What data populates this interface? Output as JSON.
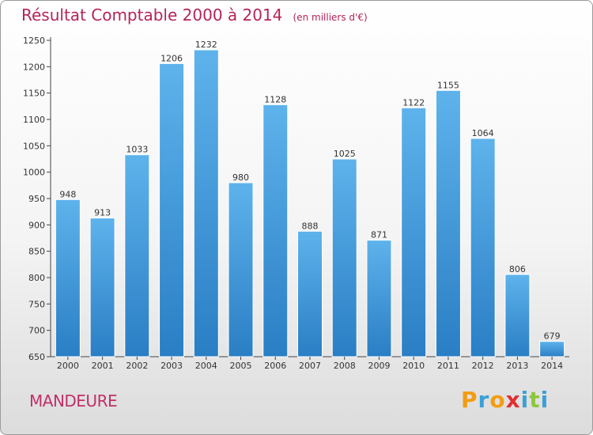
{
  "title": {
    "main": "Résultat Comptable 2000 à 2014",
    "unit": "(en milliers d'€)"
  },
  "commune": "MANDEURE",
  "brand": {
    "letters": [
      "P",
      "r",
      "o",
      "x",
      "i",
      "t",
      "i"
    ],
    "colors": [
      "#f39c12",
      "#3aa0d8",
      "#f39c12",
      "#e03030",
      "#3aa0d8",
      "#8cc63f",
      "#3aa0d8"
    ]
  },
  "colors": {
    "title": "#b4245a",
    "bar_top": "#5eb3ec",
    "bar_bottom": "#2a7ec4",
    "bar_border": "#ffffff"
  },
  "chart_data": {
    "type": "bar",
    "title": "Résultat Comptable 2000 à 2014",
    "subtitle": "(en milliers d'€)",
    "xlabel": "",
    "ylabel": "",
    "categories": [
      "2000",
      "2001",
      "2002",
      "2003",
      "2004",
      "2005",
      "2006",
      "2007",
      "2008",
      "2009",
      "2010",
      "2011",
      "2012",
      "2013",
      "2014"
    ],
    "values": [
      948,
      913,
      1033,
      1206,
      1232,
      980,
      1128,
      888,
      1025,
      871,
      1122,
      1155,
      1064,
      806,
      679
    ],
    "ylim": [
      650,
      1250
    ],
    "yticks": [
      650,
      700,
      750,
      800,
      850,
      900,
      950,
      1000,
      1050,
      1100,
      1150,
      1200,
      1250
    ],
    "grid": false,
    "legend": "none"
  }
}
